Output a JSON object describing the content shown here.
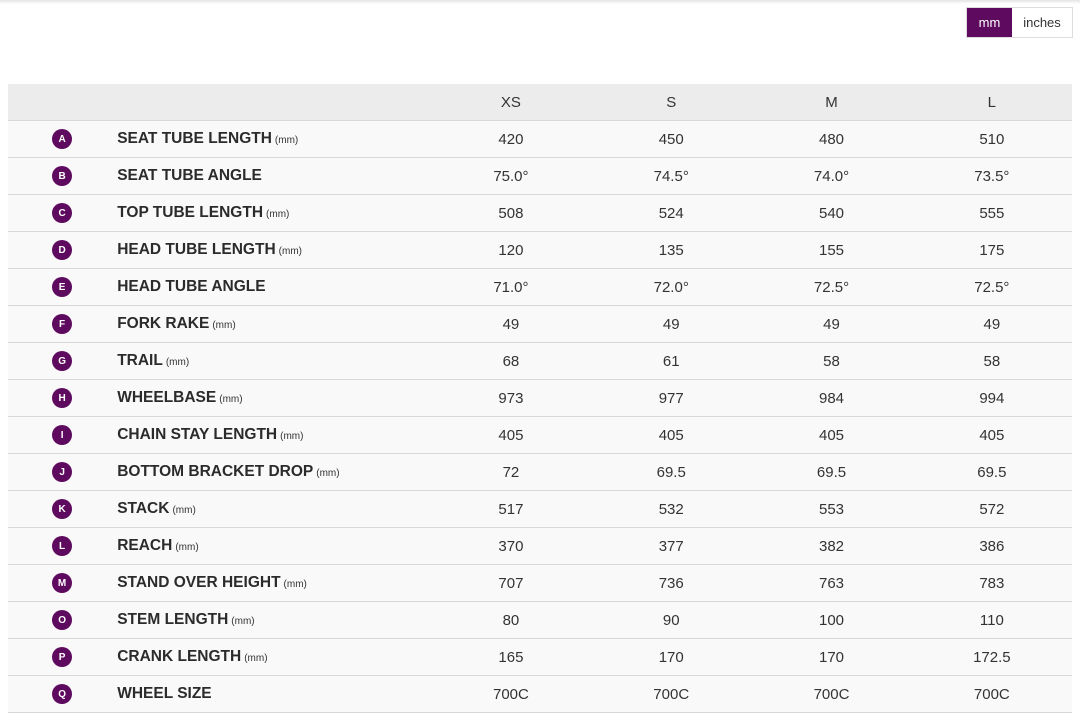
{
  "units_toggle": {
    "mm": "mm",
    "inches": "inches",
    "selected": "mm",
    "accent": "#5e0a5e"
  },
  "sizes": [
    "XS",
    "S",
    "M",
    "L"
  ],
  "rows": [
    {
      "letter": "A",
      "label": "SEAT TUBE LENGTH",
      "unit": "(mm)",
      "values": [
        "420",
        "450",
        "480",
        "510"
      ]
    },
    {
      "letter": "B",
      "label": "SEAT TUBE ANGLE",
      "unit": "",
      "values": [
        "75.0°",
        "74.5°",
        "74.0°",
        "73.5°"
      ]
    },
    {
      "letter": "C",
      "label": "TOP TUBE LENGTH",
      "unit": "(mm)",
      "values": [
        "508",
        "524",
        "540",
        "555"
      ]
    },
    {
      "letter": "D",
      "label": "HEAD TUBE LENGTH",
      "unit": "(mm)",
      "values": [
        "120",
        "135",
        "155",
        "175"
      ]
    },
    {
      "letter": "E",
      "label": "HEAD TUBE ANGLE",
      "unit": "",
      "values": [
        "71.0°",
        "72.0°",
        "72.5°",
        "72.5°"
      ]
    },
    {
      "letter": "F",
      "label": "FORK RAKE",
      "unit": "(mm)",
      "values": [
        "49",
        "49",
        "49",
        "49"
      ]
    },
    {
      "letter": "G",
      "label": "TRAIL",
      "unit": "(mm)",
      "values": [
        "68",
        "61",
        "58",
        "58"
      ]
    },
    {
      "letter": "H",
      "label": "WHEELBASE",
      "unit": "(mm)",
      "values": [
        "973",
        "977",
        "984",
        "994"
      ]
    },
    {
      "letter": "I",
      "label": "CHAIN STAY LENGTH",
      "unit": "(mm)",
      "values": [
        "405",
        "405",
        "405",
        "405"
      ]
    },
    {
      "letter": "J",
      "label": "BOTTOM BRACKET DROP",
      "unit": "(mm)",
      "values": [
        "72",
        "69.5",
        "69.5",
        "69.5"
      ]
    },
    {
      "letter": "K",
      "label": "STACK",
      "unit": "(mm)",
      "values": [
        "517",
        "532",
        "553",
        "572"
      ]
    },
    {
      "letter": "L",
      "label": "REACH",
      "unit": "(mm)",
      "values": [
        "370",
        "377",
        "382",
        "386"
      ]
    },
    {
      "letter": "M",
      "label": "STAND OVER HEIGHT",
      "unit": "(mm)",
      "values": [
        "707",
        "736",
        "763",
        "783"
      ]
    },
    {
      "letter": "O",
      "label": "STEM LENGTH",
      "unit": "(mm)",
      "values": [
        "80",
        "90",
        "100",
        "110"
      ]
    },
    {
      "letter": "P",
      "label": "CRANK LENGTH",
      "unit": "(mm)",
      "values": [
        "165",
        "170",
        "170",
        "172.5"
      ]
    },
    {
      "letter": "Q",
      "label": "WHEEL SIZE",
      "unit": "",
      "values": [
        "700C",
        "700C",
        "700C",
        "700C"
      ]
    }
  ]
}
